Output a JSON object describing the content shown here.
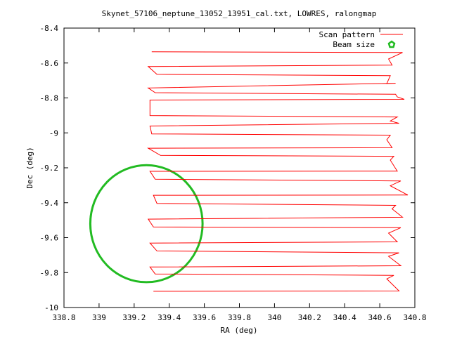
{
  "chart_data": {
    "type": "line",
    "title": "Skynet_57106_neptune_13052_13951_cal.txt, LOWRES, ralongmap",
    "xlabel": "RA (deg)",
    "ylabel": "Dec (deg)",
    "xlim": [
      338.8,
      340.8
    ],
    "ylim": [
      -10,
      -8.4
    ],
    "x_ticks": [
      338.8,
      339,
      339.2,
      339.4,
      339.6,
      339.8,
      340,
      340.2,
      340.4,
      340.6,
      340.8
    ],
    "x_tick_labels": [
      "338.8",
      "339",
      "339.2",
      "339.4",
      "339.6",
      "339.8",
      "340",
      "340.2",
      "340.4",
      "340.6",
      "340.8"
    ],
    "y_ticks": [
      -8.4,
      -8.6,
      -8.8,
      -9,
      -9.2,
      -9.4,
      -9.6,
      -9.8,
      -10
    ],
    "y_tick_labels": [
      "-8.4",
      "-8.6",
      "-8.8",
      "-9",
      "-9.2",
      "-9.4",
      "-9.6",
      "-9.8",
      "-10"
    ],
    "grid": false,
    "legend_position": "top-right",
    "series": [
      {
        "name": "Scan pattern",
        "color": "#ff0000",
        "style": "line",
        "points": [
          [
            339.3,
            -8.536
          ],
          [
            340.73,
            -8.54
          ],
          [
            340.65,
            -8.577
          ],
          [
            340.67,
            -8.612
          ],
          [
            339.28,
            -8.62
          ],
          [
            339.33,
            -8.665
          ],
          [
            340.66,
            -8.672
          ],
          [
            340.64,
            -8.718
          ],
          [
            340.69,
            -8.716
          ],
          [
            339.28,
            -8.743
          ],
          [
            339.32,
            -8.77
          ],
          [
            340.69,
            -8.779
          ],
          [
            340.7,
            -8.794
          ],
          [
            340.74,
            -8.808
          ],
          [
            339.29,
            -8.812
          ],
          [
            339.29,
            -8.901
          ],
          [
            340.7,
            -8.909
          ],
          [
            340.66,
            -8.932
          ],
          [
            340.71,
            -8.945
          ],
          [
            339.29,
            -8.961
          ],
          [
            339.3,
            -9.006
          ],
          [
            340.66,
            -9.013
          ],
          [
            340.64,
            -9.039
          ],
          [
            340.67,
            -9.085
          ],
          [
            339.28,
            -9.088
          ],
          [
            339.35,
            -9.129
          ],
          [
            340.68,
            -9.134
          ],
          [
            340.66,
            -9.156
          ],
          [
            340.7,
            -9.219
          ],
          [
            339.29,
            -9.22
          ],
          [
            339.32,
            -9.265
          ],
          [
            340.72,
            -9.275
          ],
          [
            340.66,
            -9.303
          ],
          [
            340.76,
            -9.356
          ],
          [
            339.31,
            -9.357
          ],
          [
            339.33,
            -9.404
          ],
          [
            340.69,
            -9.415
          ],
          [
            340.67,
            -9.435
          ],
          [
            340.73,
            -9.483
          ],
          [
            339.28,
            -9.494
          ],
          [
            339.31,
            -9.539
          ],
          [
            340.72,
            -9.543
          ],
          [
            340.65,
            -9.574
          ],
          [
            340.7,
            -9.624
          ],
          [
            339.29,
            -9.631
          ],
          [
            339.33,
            -9.676
          ],
          [
            340.71,
            -9.687
          ],
          [
            340.65,
            -9.707
          ],
          [
            340.72,
            -9.761
          ],
          [
            339.29,
            -9.768
          ],
          [
            339.32,
            -9.808
          ],
          [
            340.68,
            -9.816
          ],
          [
            340.64,
            -9.836
          ],
          [
            340.71,
            -9.905
          ],
          [
            339.31,
            -9.907
          ]
        ]
      },
      {
        "name": "Beam size",
        "color": "#22bb22",
        "style": "circle",
        "center": [
          339.27,
          -9.52
        ],
        "radius_x_deg": 0.32,
        "radius_y_deg": 0.335
      }
    ]
  }
}
